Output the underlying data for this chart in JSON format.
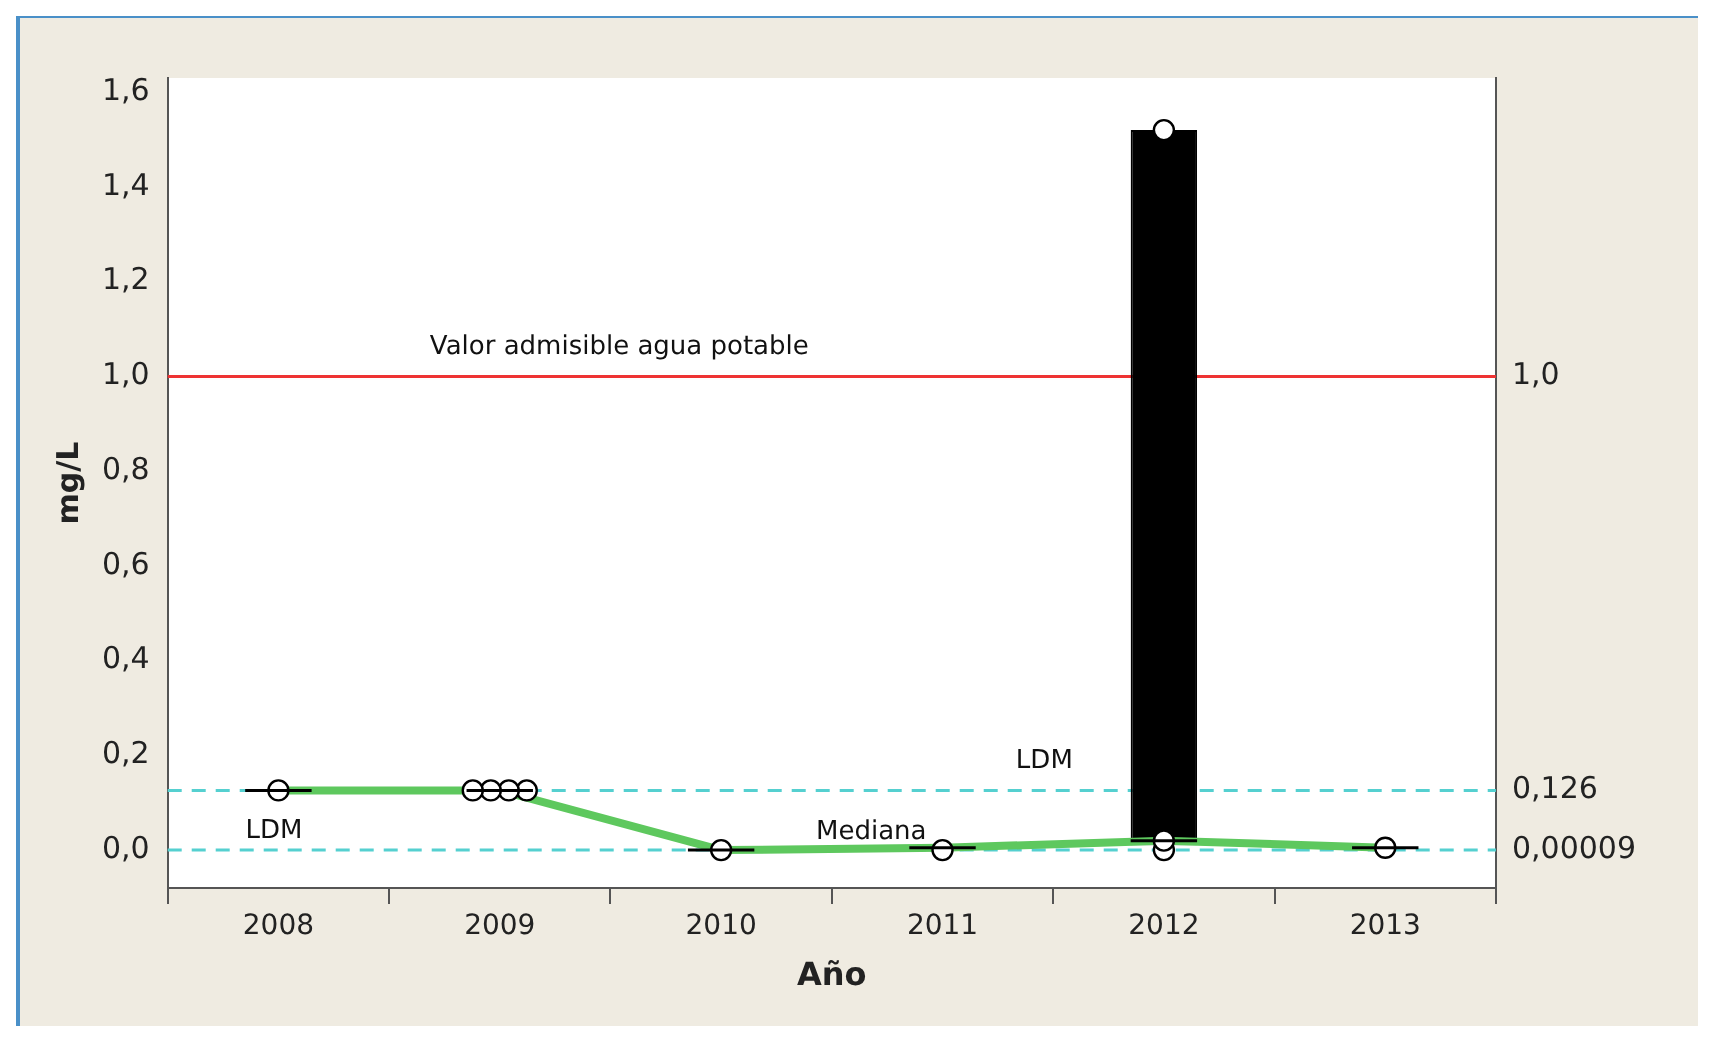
{
  "chart_data": {
    "type": "box",
    "xlabel": "Año",
    "ylabel": "mg/L",
    "categories": [
      "2008",
      "2009",
      "2010",
      "2011",
      "2012",
      "2013"
    ],
    "color": "#000000",
    "boxes": [
      {
        "low": 0.126,
        "q1": 0.126,
        "median": 0.126,
        "q3": 0.126,
        "high": 0.126
      },
      {
        "low": 0.126,
        "q1": 0.126,
        "median": 0.126,
        "q3": 0.126,
        "high": 0.126
      },
      {
        "low": 0,
        "q1": 0,
        "median": 0,
        "q3": 0,
        "high": 0
      },
      {
        "low": 0.005,
        "q1": 0.005,
        "median": 0.005,
        "q3": 0.005,
        "high": 0.005
      },
      {
        "low": 0.01,
        "q1": 0.01,
        "median": 0.02,
        "q3": 1.52,
        "high": 1.52
      },
      {
        "low": 0.005,
        "q1": 0.005,
        "median": 0.005,
        "q3": 0.005,
        "high": 0.005
      }
    ],
    "series": [
      {
        "type": "line",
        "name": "Mediana",
        "color": "#5ec85e",
        "values": [
          0.126,
          0.126,
          0,
          0.005,
          0.02,
          0.005
        ]
      },
      {
        "type": "scatter",
        "color": "#000000",
        "marker": "circle",
        "values": [
          0.126,
          0.126,
          0,
          0,
          1.52,
          0.005
        ]
      },
      {
        "type": "scatter",
        "color": "#000000",
        "marker": "circle",
        "values": [
          null,
          0.126,
          null,
          null,
          0.02,
          null
        ]
      },
      {
        "type": "scatter",
        "color": "#000000",
        "marker": "circle",
        "values": [
          null,
          0.126,
          null,
          null,
          0,
          null
        ]
      },
      {
        "type": "scatter",
        "color": "#000000",
        "marker": "circle",
        "values": [
          null,
          0.126,
          null,
          null,
          null,
          null
        ]
      }
    ],
    "ylim": [
      -0.08,
      1.63
    ],
    "yticks": [
      {
        "value": 0,
        "label": "0,0"
      },
      {
        "value": 0.2,
        "label": "0,2"
      },
      {
        "value": 0.4,
        "label": "0,4"
      },
      {
        "value": 0.6,
        "label": "0,6"
      },
      {
        "value": 0.8,
        "label": "0,8"
      },
      {
        "value": 1,
        "label": "1,0"
      },
      {
        "value": 1.2,
        "label": "1,2"
      },
      {
        "value": 1.4,
        "label": "1,4"
      },
      {
        "value": 1.6,
        "label": "1,6"
      }
    ],
    "y2lim": [
      -0.08,
      1.63
    ],
    "y2ticks": [
      {
        "value": 1,
        "label": "1,0"
      },
      {
        "value": 0.126,
        "label": "0,126"
      },
      {
        "value": 9e-05,
        "label": "0,00009"
      }
    ],
    "ref_lines": [
      {
        "axis": "y",
        "value": 1,
        "label": "Valor admisible agua potable",
        "color": "#ee3333",
        "line_style": "solid"
      },
      {
        "axis": "y",
        "value": 0.126,
        "label": "LDM",
        "color": "#55d0d0",
        "line_style": "dashed"
      },
      {
        "axis": "y",
        "value": 9e-05,
        "label": "LDM",
        "color": "#55d0d0",
        "line_style": "dashed"
      }
    ],
    "grid": false,
    "legend": false
  }
}
